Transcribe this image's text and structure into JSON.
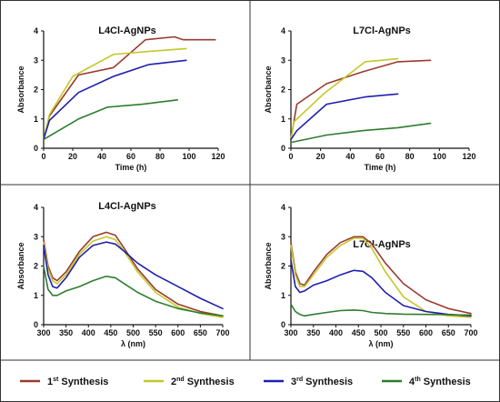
{
  "chart_data": [
    {
      "type": "line",
      "title": "L4Cl-AgNPs",
      "xlabel": "Time (h)",
      "ylabel": "Absorbance",
      "xlim": [
        0,
        120
      ],
      "ylim": [
        0,
        4
      ],
      "xticks": [
        0,
        20,
        40,
        60,
        80,
        100,
        120
      ],
      "yticks": [
        0,
        1,
        2,
        3,
        4
      ],
      "grid": false,
      "series": [
        {
          "name": "1st Synthesis",
          "x": [
            0,
            4,
            24,
            48,
            70,
            90,
            96,
            118
          ],
          "y": [
            0.3,
            1.1,
            2.5,
            2.75,
            3.7,
            3.8,
            3.7,
            3.7
          ]
        },
        {
          "name": "2nd Synthesis",
          "x": [
            0,
            4,
            20,
            48,
            72,
            98
          ],
          "y": [
            0.3,
            1.15,
            2.45,
            3.2,
            3.3,
            3.4
          ]
        },
        {
          "name": "3rd Synthesis",
          "x": [
            0,
            4,
            24,
            48,
            72,
            98
          ],
          "y": [
            0.3,
            0.95,
            1.9,
            2.45,
            2.85,
            3.0
          ]
        },
        {
          "name": "4th Synthesis",
          "x": [
            0,
            24,
            44,
            68,
            92
          ],
          "y": [
            0.3,
            1.0,
            1.4,
            1.5,
            1.65
          ]
        }
      ]
    },
    {
      "type": "line",
      "title": "L7Cl-AgNPs",
      "xlabel": "Time (h)",
      "ylabel": "Absorbance",
      "xlim": [
        0,
        120
      ],
      "ylim": [
        0,
        4
      ],
      "xticks": [
        0,
        20,
        40,
        60,
        80,
        100,
        120
      ],
      "yticks": [
        0,
        1,
        2,
        3,
        4
      ],
      "grid": false,
      "series": [
        {
          "name": "1st Synthesis",
          "x": [
            0,
            4,
            24,
            48,
            72,
            94
          ],
          "y": [
            0.3,
            1.5,
            2.2,
            2.6,
            2.95,
            3.0
          ]
        },
        {
          "name": "2nd Synthesis",
          "x": [
            0,
            2,
            22,
            50,
            72
          ],
          "y": [
            0.3,
            0.9,
            1.85,
            2.95,
            3.05
          ]
        },
        {
          "name": "3rd Synthesis",
          "x": [
            0,
            4,
            24,
            50,
            72
          ],
          "y": [
            0.3,
            0.6,
            1.5,
            1.75,
            1.85
          ]
        },
        {
          "name": "4th Synthesis",
          "x": [
            0,
            24,
            48,
            72,
            94
          ],
          "y": [
            0.2,
            0.45,
            0.6,
            0.7,
            0.85
          ]
        }
      ]
    },
    {
      "type": "line",
      "title": "L4Cl-AgNPs",
      "xlabel": "λ (nm)",
      "ylabel": "Absorbance",
      "xlim": [
        300,
        700
      ],
      "ylim": [
        0,
        4
      ],
      "xticks": [
        300,
        350,
        400,
        450,
        500,
        550,
        600,
        650,
        700
      ],
      "yticks": [
        0,
        1,
        2,
        3,
        4
      ],
      "grid": false,
      "series": [
        {
          "name": "1st Synthesis",
          "x": [
            300,
            310,
            320,
            330,
            350,
            380,
            410,
            440,
            460,
            480,
            510,
            550,
            600,
            650,
            700
          ],
          "y": [
            2.9,
            2.0,
            1.6,
            1.5,
            1.8,
            2.5,
            3.0,
            3.15,
            3.05,
            2.6,
            1.9,
            1.2,
            0.7,
            0.45,
            0.3
          ]
        },
        {
          "name": "2nd Synthesis",
          "x": [
            300,
            310,
            320,
            330,
            350,
            380,
            410,
            440,
            460,
            480,
            510,
            550,
            600,
            650,
            700
          ],
          "y": [
            2.8,
            1.9,
            1.5,
            1.4,
            1.7,
            2.4,
            2.85,
            3.0,
            2.9,
            2.5,
            1.8,
            1.1,
            0.6,
            0.38,
            0.25
          ]
        },
        {
          "name": "3rd Synthesis",
          "x": [
            300,
            310,
            320,
            330,
            350,
            380,
            410,
            440,
            460,
            480,
            510,
            550,
            600,
            650,
            700
          ],
          "y": [
            2.7,
            1.7,
            1.3,
            1.25,
            1.6,
            2.3,
            2.7,
            2.82,
            2.75,
            2.5,
            2.1,
            1.7,
            1.3,
            0.9,
            0.55
          ]
        },
        {
          "name": "4th Synthesis",
          "x": [
            300,
            310,
            320,
            330,
            350,
            380,
            410,
            440,
            460,
            480,
            510,
            550,
            600,
            650,
            700
          ],
          "y": [
            2.0,
            1.2,
            1.0,
            1.0,
            1.15,
            1.3,
            1.5,
            1.65,
            1.6,
            1.4,
            1.1,
            0.8,
            0.55,
            0.4,
            0.3
          ]
        }
      ]
    },
    {
      "type": "line",
      "title": "L7Cl-AgNPs",
      "xlabel": "λ (nm)",
      "ylabel": "Absorbance",
      "xlim": [
        300,
        700
      ],
      "ylim": [
        0,
        4
      ],
      "xticks": [
        300,
        350,
        400,
        450,
        500,
        550,
        600,
        650,
        700
      ],
      "yticks": [
        0,
        1,
        2,
        3,
        4
      ],
      "grid": false,
      "series": [
        {
          "name": "1st Synthesis",
          "x": [
            300,
            310,
            320,
            330,
            350,
            380,
            410,
            440,
            460,
            480,
            510,
            550,
            600,
            650,
            700
          ],
          "y": [
            2.8,
            1.8,
            1.4,
            1.35,
            1.8,
            2.4,
            2.8,
            3.0,
            3.0,
            2.75,
            2.1,
            1.4,
            0.85,
            0.55,
            0.38
          ]
        },
        {
          "name": "2nd Synthesis",
          "x": [
            300,
            310,
            320,
            330,
            350,
            380,
            410,
            440,
            460,
            480,
            510,
            550,
            600,
            650,
            700
          ],
          "y": [
            2.7,
            1.7,
            1.3,
            1.3,
            1.7,
            2.3,
            2.7,
            2.95,
            2.95,
            2.6,
            1.8,
            0.95,
            0.45,
            0.3,
            0.25
          ]
        },
        {
          "name": "3rd Synthesis",
          "x": [
            300,
            310,
            320,
            330,
            350,
            380,
            410,
            440,
            460,
            480,
            510,
            550,
            600,
            650,
            700
          ],
          "y": [
            2.2,
            1.3,
            1.1,
            1.15,
            1.35,
            1.5,
            1.7,
            1.85,
            1.82,
            1.6,
            1.1,
            0.65,
            0.45,
            0.35,
            0.3
          ]
        },
        {
          "name": "4th Synthesis",
          "x": [
            300,
            310,
            320,
            330,
            350,
            380,
            410,
            440,
            460,
            480,
            510,
            550,
            600,
            650,
            700
          ],
          "y": [
            0.7,
            0.45,
            0.35,
            0.3,
            0.35,
            0.42,
            0.48,
            0.5,
            0.48,
            0.42,
            0.38,
            0.36,
            0.35,
            0.34,
            0.33
          ]
        }
      ]
    }
  ],
  "legend": {
    "placement": "bottom",
    "items": [
      {
        "base": "1",
        "sup": "st",
        "rest": " Synthesis",
        "color": "#9a3b2f"
      },
      {
        "base": "2",
        "sup": "nd",
        "rest": " Synthesis",
        "color": "#c4c826"
      },
      {
        "base": "3",
        "sup": "rd",
        "rest": " Synthesis",
        "color": "#1f1fb0"
      },
      {
        "base": "4",
        "sup": "th",
        "rest": " Synthesis",
        "color": "#2e7d2e"
      }
    ]
  },
  "colors": {
    "series": [
      "#9a3b2f",
      "#c4c826",
      "#1f1fb0",
      "#2e7d2e"
    ],
    "frame": "#333333"
  }
}
